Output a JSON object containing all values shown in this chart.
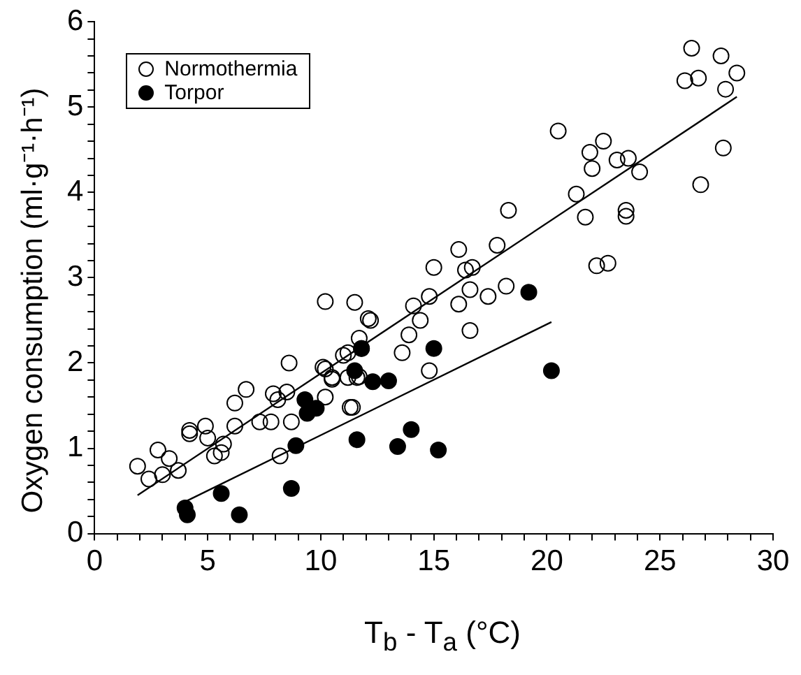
{
  "chart_data": {
    "type": "scatter",
    "xlabel": "T$_{b}$ - T$_{a}$ (°C)",
    "ylabel": "Oxygen consumption (ml·g⁻¹·h⁻¹)",
    "xlim": [
      0,
      30
    ],
    "xticks": [
      0,
      {
        "value": 1,
        "label": null
      },
      {
        "value": 2,
        "label": null
      },
      {
        "value": 3,
        "label": null
      },
      {
        "value": 4,
        "label": null
      },
      5,
      {
        "value": 6,
        "label": null
      },
      {
        "value": 7,
        "label": null
      },
      {
        "value": 8,
        "label": null
      },
      {
        "value": 9,
        "label": null
      },
      10,
      {
        "value": 11,
        "label": null
      },
      {
        "value": 12,
        "label": null
      },
      {
        "value": 13,
        "label": null
      },
      {
        "value": 14,
        "label": null
      },
      15,
      {
        "value": 16,
        "label": null
      },
      {
        "value": 17,
        "label": null
      },
      {
        "value": 18,
        "label": null
      },
      {
        "value": 19,
        "label": null
      },
      20,
      {
        "value": 21,
        "label": null
      },
      {
        "value": 22,
        "label": null
      },
      {
        "value": 23,
        "label": null
      },
      {
        "value": 24,
        "label": null
      },
      25,
      {
        "value": 26,
        "label": null
      },
      {
        "value": 27,
        "label": null
      },
      {
        "value": 28,
        "label": null
      },
      {
        "value": 29,
        "label": null
      },
      30
    ],
    "ylim": [
      0,
      6
    ],
    "yticks": [
      0,
      {
        "value": 0.2,
        "label": null
      },
      {
        "value": 0.4,
        "label": null
      },
      {
        "value": 0.6,
        "label": null
      },
      {
        "value": 0.8,
        "label": null
      },
      1,
      {
        "value": 1.2,
        "label": null
      },
      {
        "value": 1.4,
        "label": null
      },
      {
        "value": 1.6,
        "label": null
      },
      {
        "value": 1.8,
        "label": null
      },
      2,
      {
        "value": 2.2,
        "label": null
      },
      {
        "value": 2.4,
        "label": null
      },
      {
        "value": 2.6,
        "label": null
      },
      {
        "value": 2.8,
        "label": null
      },
      3,
      {
        "value": 3.2,
        "label": null
      },
      {
        "value": 3.4,
        "label": null
      },
      {
        "value": 3.6,
        "label": null
      },
      {
        "value": 3.8,
        "label": null
      },
      4,
      {
        "value": 4.2,
        "label": null
      },
      {
        "value": 4.4,
        "label": null
      },
      {
        "value": 4.6,
        "label": null
      },
      {
        "value": 4.8,
        "label": null
      },
      5,
      {
        "value": 5.2,
        "label": null
      },
      {
        "value": 5.4,
        "label": null
      },
      {
        "value": 5.6,
        "label": null
      },
      {
        "value": 5.8,
        "label": null
      },
      6
    ],
    "grid": false,
    "legend": "top left",
    "series": [
      {
        "name": "Normothermia",
        "color": "#000000",
        "marker": "circle",
        "x": [
          1.9,
          2.4,
          2.8,
          3.3,
          3.0,
          3.7,
          4.2,
          4.2,
          4.9,
          5.0,
          5.3,
          5.6,
          5.7,
          6.2,
          6.2,
          6.7,
          7.3,
          7.8,
          7.9,
          8.1,
          8.5,
          8.6,
          8.2,
          8.7,
          10.2,
          10.5,
          11.0,
          11.3,
          11.8,
          11.7,
          12.1,
          10.2,
          11.5,
          12.2,
          11.7,
          11.2,
          10.1,
          10.5,
          11.2,
          11.6,
          10.2,
          11.4,
          13.6,
          13.9,
          14.1,
          14.4,
          14.8,
          14.8,
          15.0,
          16.1,
          16.1,
          16.4,
          16.7,
          16.6,
          16.6,
          17.4,
          17.8,
          18.2,
          18.3,
          21.3,
          21.7,
          20.5,
          22.5,
          21.9,
          22.0,
          23.1,
          23.6,
          24.1,
          23.5,
          23.5,
          22.2,
          22.7,
          26.8,
          27.8,
          26.4,
          27.7,
          28.4,
          27.9,
          26.1,
          26.7
        ],
        "values": [
          0.79,
          0.64,
          0.98,
          0.88,
          0.69,
          0.74,
          1.21,
          1.17,
          1.26,
          1.12,
          0.91,
          0.95,
          1.05,
          1.26,
          1.53,
          1.69,
          1.31,
          1.31,
          1.64,
          1.57,
          1.66,
          2.0,
          0.91,
          1.31,
          1.93,
          1.81,
          2.09,
          1.48,
          2.17,
          1.84,
          2.52,
          2.72,
          2.71,
          2.5,
          2.29,
          2.12,
          1.95,
          1.83,
          1.83,
          1.83,
          1.6,
          1.48,
          2.12,
          2.33,
          2.67,
          2.5,
          2.78,
          1.91,
          3.12,
          3.33,
          2.69,
          3.09,
          3.12,
          2.86,
          2.38,
          2.78,
          3.38,
          2.9,
          3.79,
          3.98,
          3.71,
          4.72,
          4.6,
          4.47,
          4.28,
          4.38,
          4.4,
          4.24,
          3.79,
          3.72,
          3.14,
          3.17,
          4.09,
          4.52,
          5.69,
          5.6,
          5.4,
          5.21,
          5.31,
          5.34
        ]
      },
      {
        "name": "Torpor",
        "color": "#000000",
        "marker": "circle",
        "x": [
          4.0,
          4.1,
          5.6,
          6.4,
          8.7,
          8.9,
          11.6,
          11.5,
          11.8,
          9.3,
          9.8,
          9.4,
          12.3,
          13.0,
          15.0,
          19.2,
          20.2,
          14.0,
          13.4,
          15.2
        ],
        "values": [
          0.3,
          0.22,
          0.47,
          0.22,
          0.53,
          1.03,
          1.1,
          1.91,
          2.17,
          1.57,
          1.47,
          1.41,
          1.78,
          1.79,
          2.17,
          2.83,
          1.91,
          1.22,
          1.02,
          0.98
        ]
      },
      {
        "type": "line",
        "color": "#000000",
        "marker": "none",
        "x": [
          1.9,
          28.4
        ],
        "values": [
          0.45,
          5.12
        ]
      },
      {
        "type": "line",
        "color": "#000000",
        "marker": "none",
        "x": [
          3.9,
          20.2
        ],
        "values": [
          0.36,
          2.48
        ]
      }
    ]
  }
}
